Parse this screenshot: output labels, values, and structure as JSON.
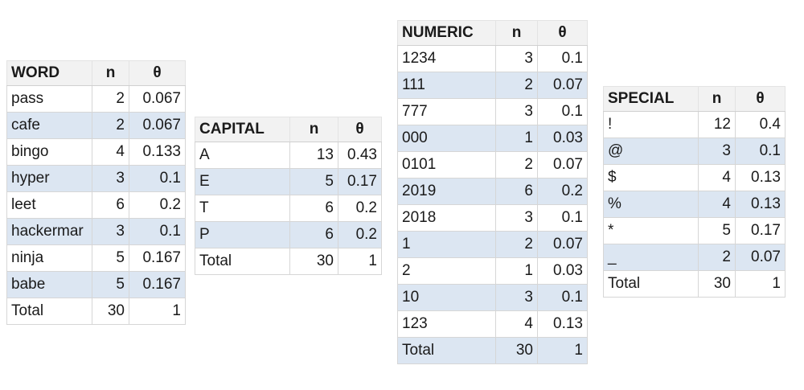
{
  "tables": [
    {
      "id": "word",
      "headers": [
        "WORD",
        "n",
        "θ"
      ],
      "rows": [
        [
          "pass",
          "2",
          "0.067"
        ],
        [
          "cafe",
          "2",
          "0.067"
        ],
        [
          "bingo",
          "4",
          "0.133"
        ],
        [
          "hyper",
          "3",
          "0.1"
        ],
        [
          "leet",
          "6",
          "0.2"
        ],
        [
          "hackermar",
          "3",
          "0.1"
        ],
        [
          "ninja",
          "5",
          "0.167"
        ],
        [
          "babe",
          "5",
          "0.167"
        ],
        [
          "Total",
          "30",
          "1"
        ]
      ]
    },
    {
      "id": "capital",
      "headers": [
        "CAPITAL",
        "n",
        "θ"
      ],
      "rows": [
        [
          "A",
          "13",
          "0.43"
        ],
        [
          "E",
          "5",
          "0.17"
        ],
        [
          "T",
          "6",
          "0.2"
        ],
        [
          "P",
          "6",
          "0.2"
        ],
        [
          "Total",
          "30",
          "1"
        ]
      ]
    },
    {
      "id": "numeric",
      "headers": [
        "NUMERIC",
        "n",
        "θ"
      ],
      "rows": [
        [
          "1234",
          "3",
          "0.1"
        ],
        [
          "111",
          "2",
          "0.07"
        ],
        [
          "777",
          "3",
          "0.1"
        ],
        [
          "000",
          "1",
          "0.03"
        ],
        [
          "0101",
          "2",
          "0.07"
        ],
        [
          "2019",
          "6",
          "0.2"
        ],
        [
          "2018",
          "3",
          "0.1"
        ],
        [
          "1",
          "2",
          "0.07"
        ],
        [
          "2",
          "1",
          "0.03"
        ],
        [
          "10",
          "3",
          "0.1"
        ],
        [
          "123",
          "4",
          "0.13"
        ],
        [
          "Total",
          "30",
          "1"
        ]
      ]
    },
    {
      "id": "special",
      "headers": [
        "SPECIAL",
        "n",
        "θ"
      ],
      "rows": [
        [
          "!",
          "12",
          "0.4"
        ],
        [
          "@",
          "3",
          "0.1"
        ],
        [
          "$",
          "4",
          "0.13"
        ],
        [
          "%",
          "4",
          "0.13"
        ],
        [
          "*",
          "5",
          "0.17"
        ],
        [
          "_",
          "2",
          "0.07"
        ],
        [
          "Total",
          "30",
          "1"
        ]
      ]
    }
  ],
  "colors": {
    "row_alt": "#dce6f2",
    "header_bg": "#f2f2f2",
    "grid": "#d6d6d6"
  }
}
